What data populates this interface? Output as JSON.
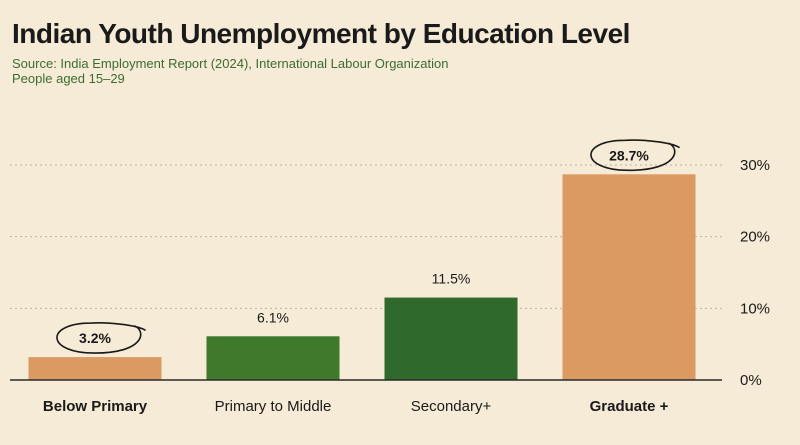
{
  "header": {
    "title": "Indian Youth Unemployment by Education Level",
    "source": "Source: India Employment Report (2024), International Labour Organization",
    "subtitle": "People aged 15–29"
  },
  "colors": {
    "orange": "#dc9a63",
    "light_green": "#4a7c2e",
    "mid_green": "#3a7132",
    "dark_green": "#2c5a28",
    "axis": "#2a2a2a",
    "grid": "#bdb3a0"
  },
  "chart_data": {
    "type": "bar",
    "categories": [
      "Below Primary",
      "Primary to Middle",
      "Secondary+",
      "Graduate +"
    ],
    "values": [
      3.2,
      6.1,
      11.5,
      28.7
    ],
    "value_labels": [
      "3.2%",
      "6.1%",
      "11.5%",
      "28.7%"
    ],
    "highlighted": [
      true,
      false,
      false,
      true
    ],
    "bar_colors": [
      "#dc9a63",
      "#3f7a2c",
      "#2f6a2c",
      "#dc9a63"
    ],
    "ylim": [
      0,
      30
    ],
    "yticks": [
      0,
      10,
      20,
      30
    ],
    "ytick_labels": [
      "0%",
      "10%",
      "20%",
      "30%"
    ],
    "y_axis_position": "right",
    "grid": true,
    "title": "Indian Youth Unemployment by Education Level",
    "xlabel": "",
    "ylabel": ""
  }
}
